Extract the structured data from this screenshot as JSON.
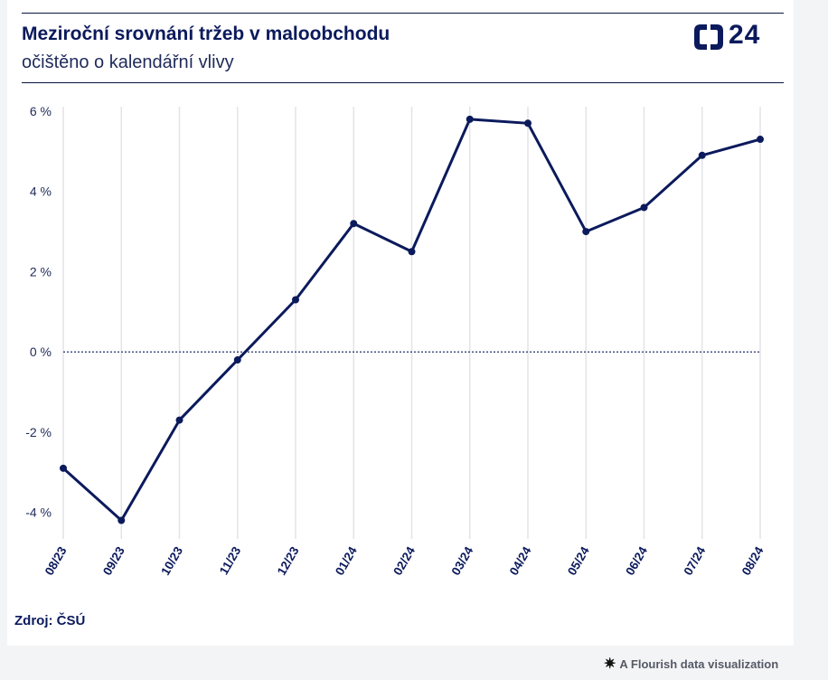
{
  "header": {
    "title": "Meziroční srovnání tržeb v maloobchodu",
    "subtitle": "očištěno o kalendářní vlivy",
    "logo_text": "24"
  },
  "footer": {
    "source": "Zdroj: ČSÚ",
    "flourish_label": "A Flourish data visualization"
  },
  "colors": {
    "line": "#0b1a5c",
    "grid": "#e3e4e8",
    "text": "#1e2a5a"
  },
  "chart_data": {
    "type": "line",
    "categories": [
      "08/23",
      "09/23",
      "10/23",
      "11/23",
      "12/23",
      "01/24",
      "02/24",
      "03/24",
      "04/24",
      "05/24",
      "06/24",
      "07/24",
      "08/24"
    ],
    "values": [
      -2.9,
      -4.2,
      -1.7,
      -0.2,
      1.3,
      3.2,
      2.5,
      5.8,
      5.7,
      3.0,
      3.6,
      4.9,
      5.3
    ],
    "y_ticks": [
      6,
      4,
      2,
      0,
      -2,
      -4
    ],
    "y_tick_labels": [
      "6 %",
      "4 %",
      "2 %",
      "0 %",
      "-2 %",
      "-4 %"
    ],
    "ylim": [
      -5,
      6
    ],
    "grid": "vertical",
    "zero_line": "dotted",
    "legend": "none"
  }
}
